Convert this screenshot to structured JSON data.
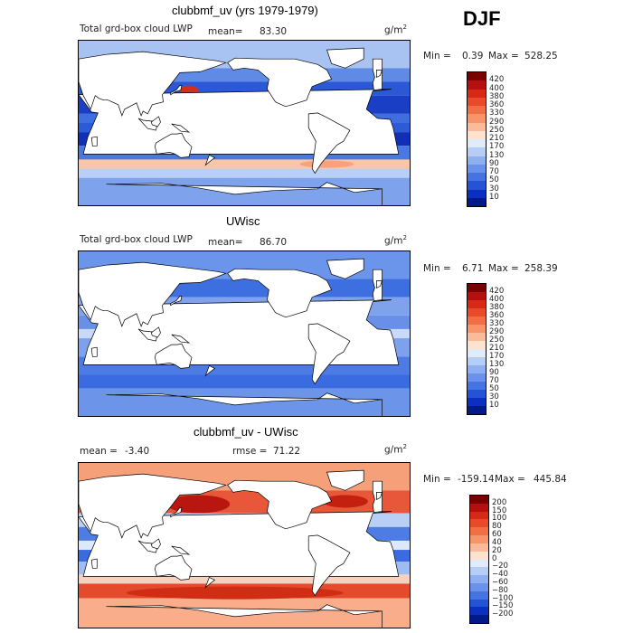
{
  "season": "DJF",
  "panels": [
    {
      "title": "clubbmf_uv (yrs 1979-1979)",
      "left_label": "Total grd-box cloud LWP",
      "mean_label": "mean=",
      "mean_value": "83.30",
      "units": "g/m",
      "units_exp": "2",
      "min_label": "Min =",
      "min_value": "0.39",
      "max_label": "Max =",
      "max_value": "528.25",
      "levels": [
        "420",
        "400",
        "380",
        "360",
        "330",
        "290",
        "250",
        "210",
        "170",
        "130",
        "90",
        "70",
        "50",
        "30",
        "10"
      ],
      "colors": [
        "#7a0000",
        "#b50f0f",
        "#d62a17",
        "#e84a2a",
        "#f26e45",
        "#f8946a",
        "#fbbb98",
        "#fde2cf",
        "#dfeafb",
        "#b6cdf6",
        "#8fb0f0",
        "#6a92ea",
        "#4574e2",
        "#2553d6",
        "#0b2fbf",
        "#001a8a"
      ],
      "map_tone": "mixed"
    },
    {
      "title": "UWisc",
      "left_label": "Total grd-box cloud LWP",
      "mean_label": "mean=",
      "mean_value": "86.70",
      "units": "g/m",
      "units_exp": "2",
      "min_label": "Min =",
      "min_value": "6.71",
      "max_label": "Max =",
      "max_value": "258.39",
      "levels": [
        "420",
        "400",
        "380",
        "360",
        "330",
        "290",
        "250",
        "210",
        "170",
        "130",
        "90",
        "70",
        "50",
        "30",
        "10"
      ],
      "colors": [
        "#7a0000",
        "#b50f0f",
        "#d62a17",
        "#e84a2a",
        "#f26e45",
        "#f8946a",
        "#fbbb98",
        "#fde2cf",
        "#dfeafb",
        "#b6cdf6",
        "#8fb0f0",
        "#6a92ea",
        "#4574e2",
        "#2553d6",
        "#0b2fbf",
        "#001a8a"
      ],
      "map_tone": "light"
    },
    {
      "title": "clubbmf_uv - UWisc",
      "left_label": "mean =",
      "mean_label": "",
      "mean_value": "-3.40",
      "rmse_label": "rmse =",
      "rmse_value": "71.22",
      "units": "g/m",
      "units_exp": "2",
      "min_label": "Min =",
      "min_value": "-159.14",
      "max_label": "Max =",
      "max_value": "445.84",
      "levels": [
        "200",
        "150",
        "100",
        "80",
        "60",
        "40",
        "20",
        "0",
        "−20",
        "−40",
        "−60",
        "−80",
        "−100",
        "−150",
        "−200"
      ],
      "colors": [
        "#7a0000",
        "#b50f0f",
        "#d62a17",
        "#e84a2a",
        "#f26e45",
        "#f8946a",
        "#fbbb98",
        "#fde2cf",
        "#dfeafb",
        "#b6cdf6",
        "#8fb0f0",
        "#6a92ea",
        "#4574e2",
        "#2553d6",
        "#0b2fbf",
        "#001a8a"
      ],
      "map_tone": "diff"
    }
  ]
}
